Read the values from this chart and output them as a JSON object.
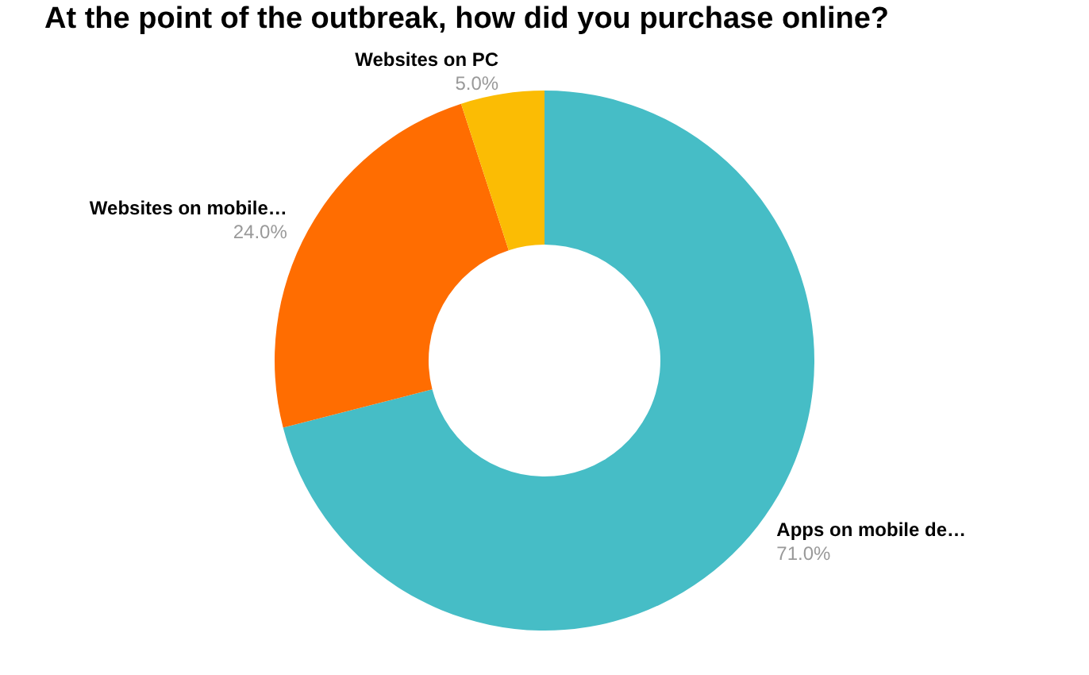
{
  "chart_data": {
    "type": "donut",
    "title": "At the point of the outbreak, how did you purchase online?",
    "categories": [
      "Apps on mobile de…",
      "Websites on mobile…",
      "Websites on PC"
    ],
    "values": [
      71,
      24,
      5
    ],
    "colors": [
      "#46bdc6",
      "#ff6d01",
      "#fbbc04"
    ],
    "value_labels": [
      "71.0%",
      "24.0%",
      "5.0%"
    ],
    "legend": false
  }
}
